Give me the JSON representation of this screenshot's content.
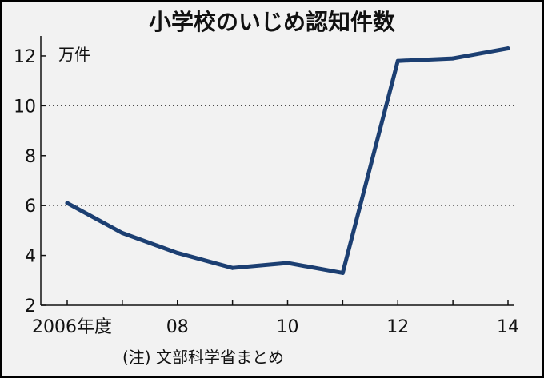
{
  "chart_data": {
    "type": "line",
    "title": "小学校のいじめ認知件数",
    "unit_label": "万件",
    "note": "(注) 文部科学省まとめ",
    "x": [
      2006,
      2007,
      2008,
      2009,
      2010,
      2011,
      2012,
      2013,
      2014
    ],
    "x_tick_labels": [
      {
        "x": 2006,
        "label": "2006年度"
      },
      {
        "x": 2008,
        "label": "08"
      },
      {
        "x": 2010,
        "label": "10"
      },
      {
        "x": 2012,
        "label": "12"
      },
      {
        "x": 2014,
        "label": "14"
      }
    ],
    "y_ticks": [
      2,
      4,
      6,
      8,
      10,
      12
    ],
    "ylim": [
      2,
      12.8
    ],
    "gridlines_at": [
      6,
      10
    ],
    "series": [
      {
        "values": [
          6.1,
          4.9,
          4.1,
          3.5,
          3.7,
          3.3,
          11.8,
          11.9,
          12.3
        ],
        "color": "#1c3f72"
      }
    ]
  }
}
